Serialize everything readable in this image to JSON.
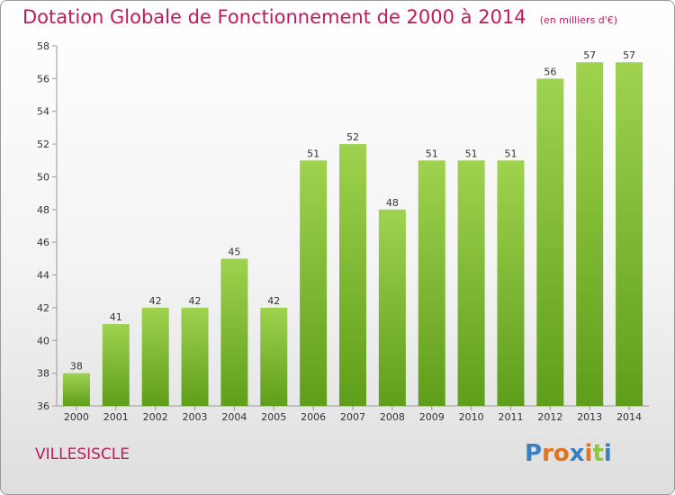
{
  "header": {
    "title": "Dotation Globale de Fonctionnement de 2000 à 2014",
    "unit": "(en milliers d'€)"
  },
  "footer": {
    "commune": "VILLESISCLE",
    "brand_letters": [
      "P",
      "r",
      "o",
      "x",
      "i",
      "t",
      "i"
    ],
    "brand_colors": [
      "#3a7fc1",
      "#e2731f",
      "#e2731f",
      "#3a7fc1",
      "#e2731f",
      "#8dc63f",
      "#3a7fc1"
    ]
  },
  "chart_data": {
    "type": "bar",
    "categories": [
      "2000",
      "2001",
      "2002",
      "2003",
      "2004",
      "2005",
      "2006",
      "2007",
      "2008",
      "2009",
      "2010",
      "2011",
      "2012",
      "2013",
      "2014"
    ],
    "values": [
      38,
      41,
      42,
      42,
      45,
      42,
      51,
      52,
      48,
      51,
      51,
      51,
      56,
      57,
      57
    ],
    "ylim": [
      36,
      58
    ],
    "yticks": [
      36,
      38,
      40,
      42,
      44,
      46,
      48,
      50,
      52,
      54,
      56,
      58
    ],
    "grid": false,
    "bar_color": "#7cb82f"
  }
}
